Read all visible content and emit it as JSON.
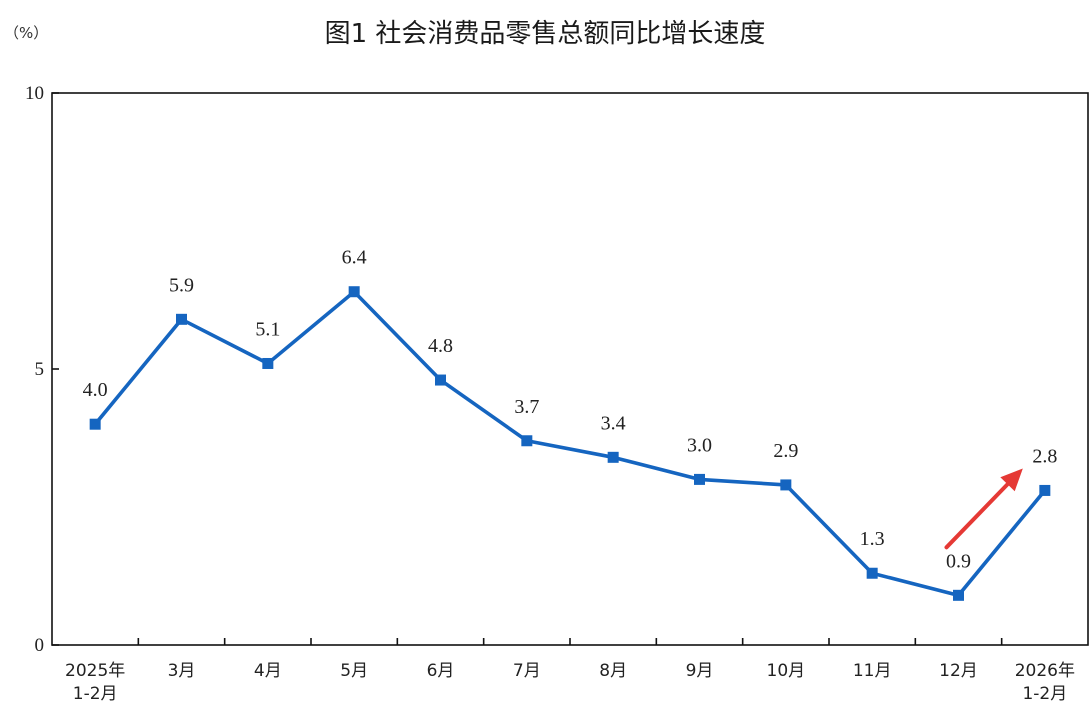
{
  "chart_data": {
    "type": "line",
    "title": "图1  社会消费品零售总额同比增长速度",
    "unit_label": "（%）",
    "categories": [
      [
        "2025年",
        "1-2月"
      ],
      [
        "3月"
      ],
      [
        "4月"
      ],
      [
        "5月"
      ],
      [
        "6月"
      ],
      [
        "7月"
      ],
      [
        "8月"
      ],
      [
        "9月"
      ],
      [
        "10月"
      ],
      [
        "11月"
      ],
      [
        "12月"
      ],
      [
        "2026年",
        "1-2月"
      ]
    ],
    "values": [
      4.0,
      5.9,
      5.1,
      6.4,
      4.8,
      3.7,
      3.4,
      3.0,
      2.9,
      1.3,
      0.9,
      2.8
    ],
    "value_labels": [
      "4.0",
      "5.9",
      "5.1",
      "6.4",
      "4.8",
      "3.7",
      "3.4",
      "3.0",
      "2.9",
      "1.3",
      "0.9",
      "2.8"
    ],
    "ylim": [
      0,
      10
    ],
    "yticks": [
      "0",
      "5",
      "10"
    ],
    "grid": false,
    "line_color": "#1565c0",
    "marker_color": "#1565c0",
    "arrow_color": "#e53935",
    "annotation": "upward red arrow pointing to the last data point"
  }
}
